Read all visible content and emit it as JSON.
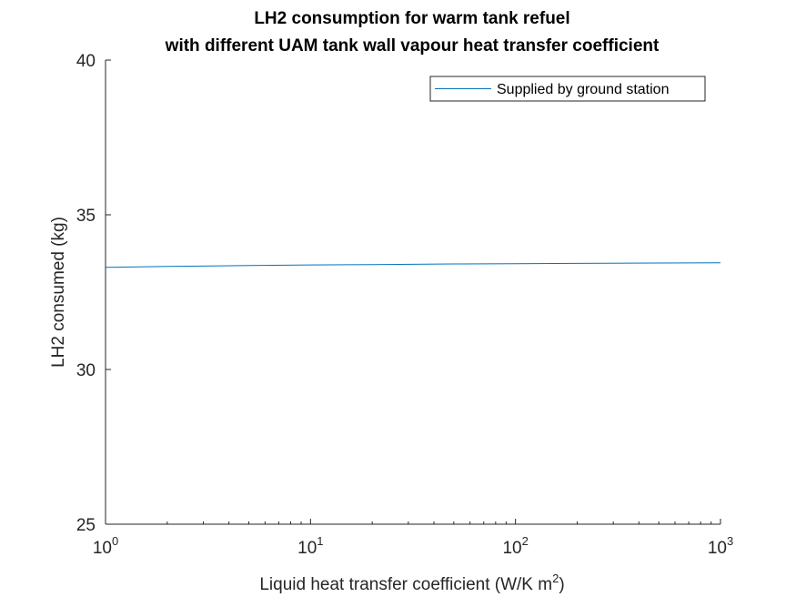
{
  "chart_data": {
    "type": "line",
    "title_line1": "LH2 consumption for warm tank refuel",
    "title_line2": "with different UAM tank wall vapour heat transfer coefficient",
    "xlabel_main": "Liquid heat transfer coefficient (W/K m",
    "xlabel_exp": "2",
    "xlabel_close": ")",
    "ylabel": "LH2 consumed (kg)",
    "xscale": "log",
    "xlim": [
      1,
      1000
    ],
    "ylim": [
      25,
      40
    ],
    "x_ticks": [
      {
        "base": "10",
        "exp": "0",
        "value": 1
      },
      {
        "base": "10",
        "exp": "1",
        "value": 10
      },
      {
        "base": "10",
        "exp": "2",
        "value": 100
      },
      {
        "base": "10",
        "exp": "3",
        "value": 1000
      }
    ],
    "y_ticks": [
      "25",
      "30",
      "35",
      "40"
    ],
    "grid": false,
    "legend_position": "top-right",
    "series": [
      {
        "name": "Supplied by ground station",
        "color": "#0072bd",
        "x": [
          1,
          2,
          5,
          10,
          20,
          50,
          100,
          200,
          500,
          1000
        ],
        "y": [
          33.3,
          33.33,
          33.36,
          33.38,
          33.39,
          33.41,
          33.42,
          33.43,
          33.44,
          33.45
        ]
      }
    ]
  }
}
